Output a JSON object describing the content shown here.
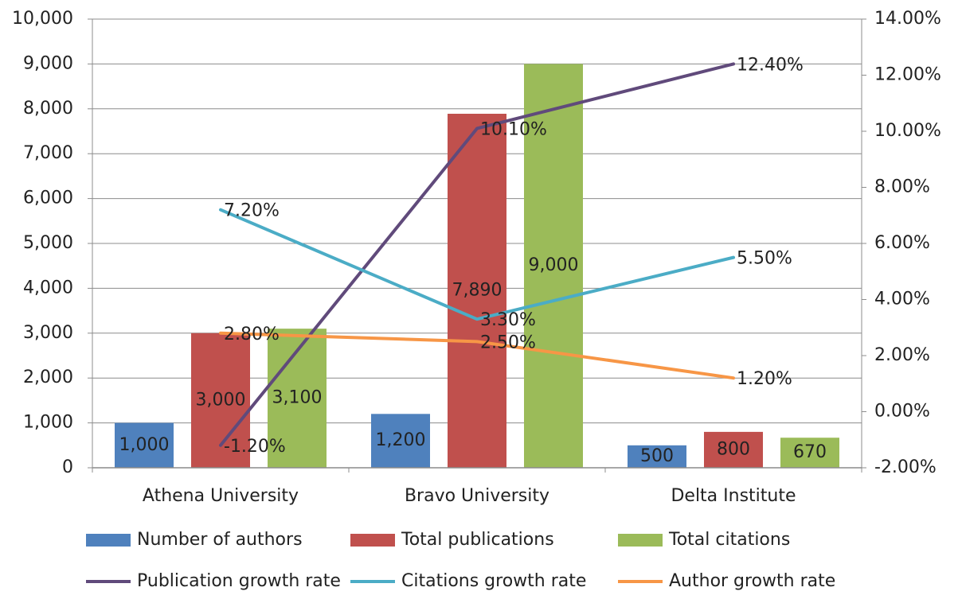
{
  "chart_data": {
    "type": "bar",
    "categories": [
      "Athena University",
      "Bravo University",
      "Delta Institute"
    ],
    "bar_series": [
      {
        "name": "Number of authors",
        "color": "#4F81BD",
        "values": [
          1000,
          1200,
          500
        ],
        "labels": [
          "1,000",
          "1,200",
          "500"
        ]
      },
      {
        "name": "Total publications",
        "color": "#C0504D",
        "values": [
          3000,
          7890,
          800
        ],
        "labels": [
          "3,000",
          "7,890",
          "800"
        ]
      },
      {
        "name": "Total citations",
        "color": "#9BBB59",
        "values": [
          3100,
          9000,
          670
        ],
        "labels": [
          "3,100",
          "9,000",
          "670"
        ]
      }
    ],
    "line_series": [
      {
        "name": "Publication growth rate",
        "color": "#604A7B",
        "values": [
          -1.2,
          10.1,
          12.4
        ],
        "labels": [
          "-1.20%",
          "10.10%",
          "12.40%"
        ]
      },
      {
        "name": "Citations growth rate",
        "color": "#4BACC6",
        "values": [
          7.2,
          3.3,
          5.5
        ],
        "labels": [
          "7.20%",
          "3.30%",
          "5.50%"
        ]
      },
      {
        "name": "Author growth rate",
        "color": "#F79646",
        "values": [
          2.8,
          2.5,
          1.2
        ],
        "labels": [
          "2.80%",
          "2.50%",
          "1.20%"
        ]
      }
    ],
    "y_left": {
      "min": 0,
      "max": 10000,
      "ticks": [
        "0",
        "1,000",
        "2,000",
        "3,000",
        "4,000",
        "5,000",
        "6,000",
        "7,000",
        "8,000",
        "9,000",
        "10,000"
      ]
    },
    "y_right": {
      "min": -2,
      "max": 14,
      "ticks": [
        "-2.00%",
        "0.00%",
        "2.00%",
        "4.00%",
        "6.00%",
        "8.00%",
        "10.00%",
        "12.00%",
        "14.00%"
      ]
    },
    "grid": true,
    "legend_position": "bottom"
  }
}
